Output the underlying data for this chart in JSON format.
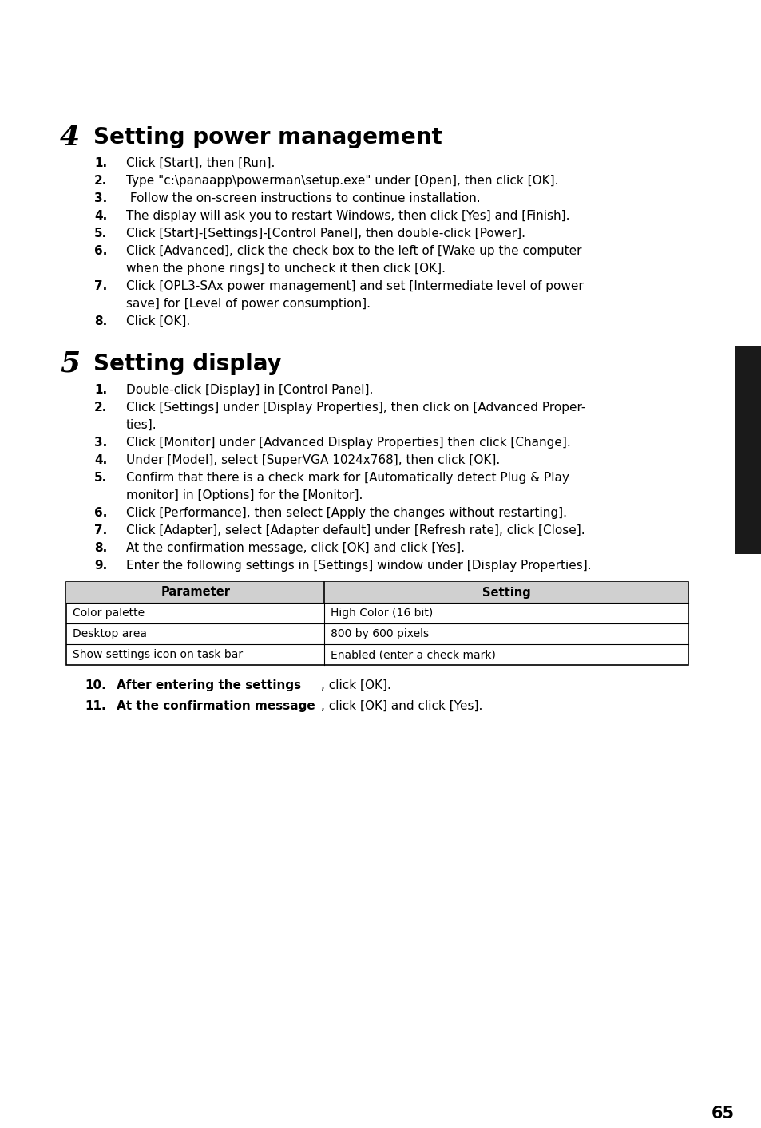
{
  "bg_color": "#ffffff",
  "page_number": "65",
  "section1_number": "4",
  "section1_title": "Setting power management",
  "section1_items": [
    {
      "num": "1.",
      "text": "Click [Start], then [Run]."
    },
    {
      "num": "2.",
      "text": "Type \"c:\\panaapp\\powerman\\setup.exe\" under [Open], then click [OK]."
    },
    {
      "num": "3.",
      "text": " Follow the on-screen instructions to continue installation."
    },
    {
      "num": "4.",
      "text": "The display will ask you to restart Windows, then click [Yes] and [Finish]."
    },
    {
      "num": "5.",
      "text": "Click [Start]-[Settings]-[Control Panel], then double-click [Power]."
    },
    {
      "num": "6.",
      "text": "Click [Advanced], click the check box to the left of [Wake up the computer\nwhen the phone rings] to uncheck it then click [OK]."
    },
    {
      "num": "7.",
      "text": "Click [OPL3-SAx power management] and set [Intermediate level of power\nsave] for [Level of power consumption]."
    },
    {
      "num": "8.",
      "text": "Click [OK]."
    }
  ],
  "section2_number": "5",
  "section2_title": "Setting display",
  "section2_items": [
    {
      "num": "1.",
      "text": "Double-click [Display] in [Control Panel]."
    },
    {
      "num": "2.",
      "text": "Click [Settings] under [Display Properties], then click on [Advanced Proper-\nties]."
    },
    {
      "num": "3.",
      "text": "Click [Monitor] under [Advanced Display Properties] then click [Change]."
    },
    {
      "num": "4.",
      "text": "Under [Model], select [SuperVGA 1024x768], then click [OK]."
    },
    {
      "num": "5.",
      "text": "Confirm that there is a check mark for [Automatically detect Plug & Play\nmonitor] in [Options] for the [Monitor]."
    },
    {
      "num": "6.",
      "text": "Click [Performance], then select [Apply the changes without restarting]."
    },
    {
      "num": "7.",
      "text": "Click [Adapter], select [Adapter default] under [Refresh rate], click [Close]."
    },
    {
      "num": "8.",
      "text": "At the confirmation message, click [OK] and click [Yes]."
    },
    {
      "num": "9.",
      "text": "Enter the following settings in [Settings] window under [Display Properties]."
    }
  ],
  "table_headers": [
    "Parameter",
    "Setting"
  ],
  "table_rows": [
    [
      "Color palette",
      "High Color (16 bit)"
    ],
    [
      "Desktop area",
      "800 by 600 pixels"
    ],
    [
      "Show settings icon on task bar",
      "Enabled (enter a check mark)"
    ]
  ],
  "section2_items_after": [
    {
      "num": "10.",
      "bold_text": "After entering the settings",
      "rest_text": ", click [OK]."
    },
    {
      "num": "11.",
      "bold_text": "At the confirmation message",
      "rest_text": ", click [OK] and click [Yes]."
    }
  ],
  "sidebar_color": "#1a1a1a"
}
